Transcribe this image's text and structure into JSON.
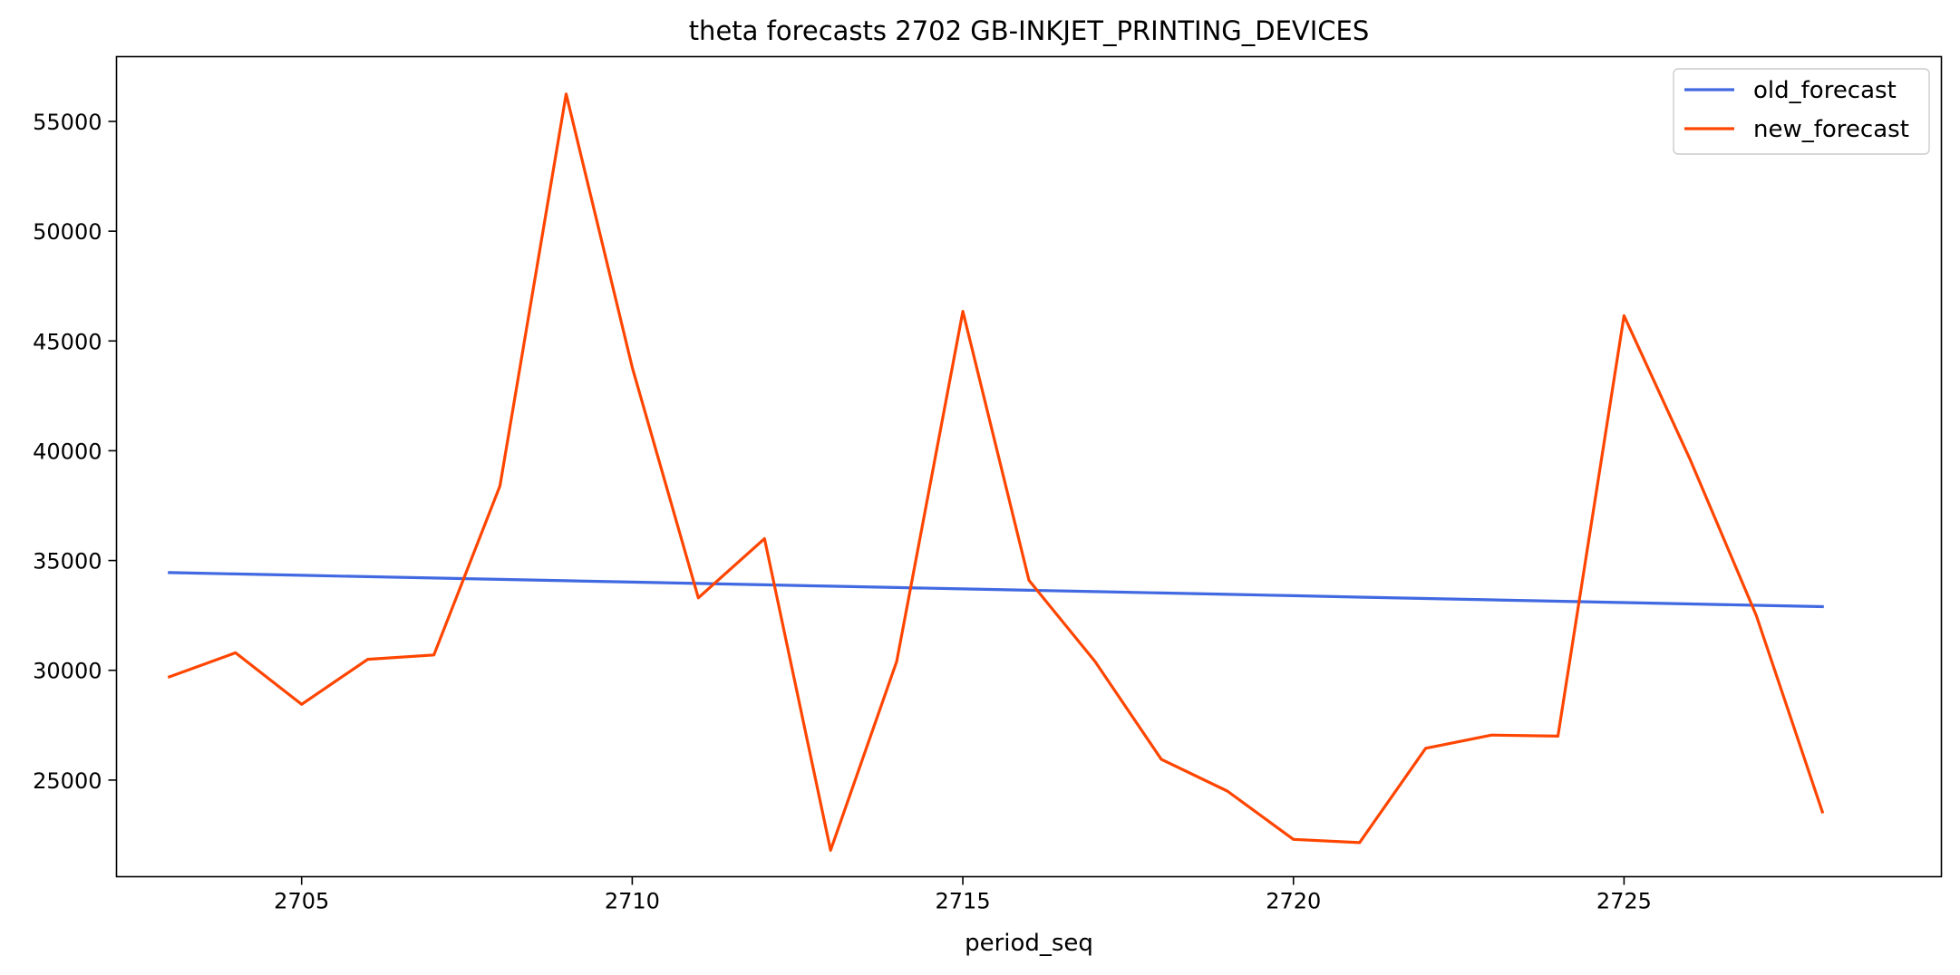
{
  "chart_data": {
    "type": "line",
    "title": "theta forecasts 2702 GB-INKJET_PRINTING_DEVICES",
    "xlabel": "period_seq",
    "ylabel": "",
    "x": [
      2703,
      2704,
      2705,
      2706,
      2707,
      2708,
      2709,
      2710,
      2711,
      2712,
      2713,
      2714,
      2715,
      2716,
      2717,
      2718,
      2719,
      2720,
      2721,
      2722,
      2723,
      2724,
      2725,
      2726,
      2727,
      2728
    ],
    "series": [
      {
        "name": "old_forecast",
        "color": "#4169E1",
        "values": [
          34450,
          34388,
          34326,
          34264,
          34202,
          34140,
          34078,
          34016,
          33954,
          33892,
          33830,
          33768,
          33706,
          33644,
          33582,
          33520,
          33458,
          33396,
          33334,
          33272,
          33210,
          33148,
          33086,
          33024,
          32962,
          32900
        ]
      },
      {
        "name": "new_forecast",
        "color": "#FF4500",
        "values": [
          29700,
          30800,
          28450,
          30500,
          30700,
          38400,
          56250,
          43800,
          33300,
          36000,
          21800,
          30400,
          46350,
          34100,
          30400,
          25950,
          24500,
          22300,
          22150,
          26450,
          27050,
          27000,
          46150,
          39600,
          32500,
          23550
        ]
      }
    ],
    "xticks": [
      2705,
      2710,
      2715,
      2720,
      2725
    ],
    "yticks": [
      25000,
      30000,
      35000,
      40000,
      45000,
      50000,
      55000
    ],
    "xlim": [
      2702.2,
      2729.8
    ],
    "ylim": [
      20600,
      57950
    ],
    "grid": false,
    "legend_position": "top-right"
  }
}
